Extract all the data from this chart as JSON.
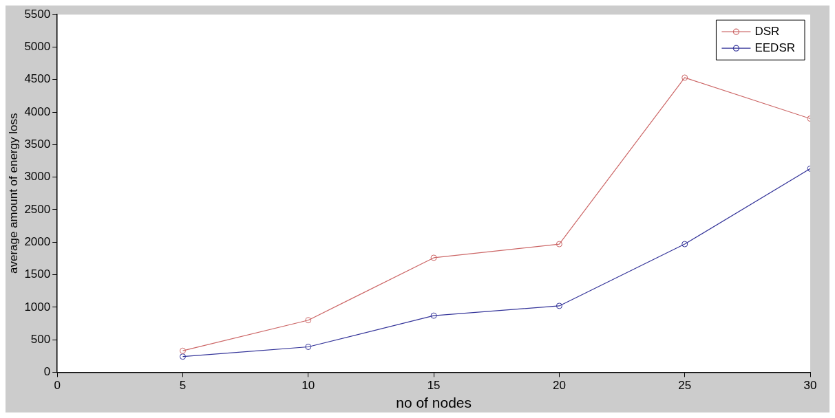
{
  "chart_data": {
    "type": "line",
    "xlabel": "no of nodes",
    "ylabel": "average amount of energy loss",
    "x": [
      5,
      10,
      15,
      20,
      25,
      30
    ],
    "series": [
      {
        "name": "DSR",
        "color": "#cc6666",
        "values": [
          330,
          800,
          1760,
          1970,
          4530,
          3900
        ]
      },
      {
        "name": "EEDSR",
        "color": "#333399",
        "values": [
          240,
          390,
          870,
          1020,
          1970,
          3130
        ]
      }
    ],
    "xlim": [
      0,
      30
    ],
    "xticks": [
      0,
      5,
      10,
      15,
      20,
      25,
      30
    ],
    "ylim": [
      0,
      5500
    ],
    "yticks": [
      0,
      500,
      1000,
      1500,
      2000,
      2500,
      3000,
      3500,
      4000,
      4500,
      5000,
      5500
    ],
    "grid": false,
    "legend": "top right",
    "marker": "circle",
    "line_style": "solid"
  }
}
